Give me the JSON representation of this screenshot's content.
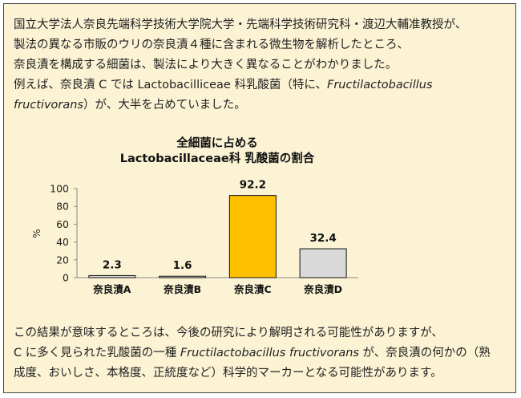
{
  "intro": {
    "line1": "国立大学法人奈良先端科学技術大学院大学・先端科学技術研究科・渡辺大輔准教授が、",
    "line2": "製法の異なる市販のウリの奈良漬４種に含まれる微生物を解析したところ、",
    "line3": "奈良漬を構成する細菌は、製法により大きく異なることがわかりました。",
    "line4_pre": "例えば、奈良漬 C では Lactobacilliceae  科乳酸菌（特に、",
    "line4_italic": "Fructilactobacillus",
    "line5_italic": "fructivorans",
    "line5_post": "）が、大半を占めていました。"
  },
  "chart_data": {
    "type": "bar",
    "title_line1": "全細菌に占める",
    "title_line2": "Lactobacillaceae科 乳酸菌の割合",
    "ylabel": "%",
    "xlabel": "",
    "ylim": [
      0,
      100
    ],
    "yticks": [
      0,
      20,
      40,
      60,
      80,
      100
    ],
    "grid": false,
    "categories": [
      "奈良漬A",
      "奈良漬B",
      "奈良漬C",
      "奈良漬D"
    ],
    "values": [
      2.3,
      1.6,
      92.2,
      32.4
    ],
    "value_labels": [
      "2.3",
      "1.6",
      "92.2",
      "32.4"
    ],
    "colors": [
      "#d9d9d9",
      "#d9d9d9",
      "#ffc000",
      "#d9d9d9"
    ]
  },
  "outro": {
    "line1": "この結果が意味するところは、今後の研究により解明される可能性がありますが、",
    "line2_pre": "C に多く見られた乳酸菌の一種 ",
    "line2_italic": "Fructilactobacillus fructivorans",
    "line2_post": " が、奈良漬の何かの（熟",
    "line3": "成度、おいしさ、本格度、正統度など）科学的マーカーとなる可能性があります。"
  },
  "colors": {
    "panel_bg": "#fbf3d4",
    "highlight_bar": "#ffc000",
    "other_bar": "#d9d9d9"
  }
}
